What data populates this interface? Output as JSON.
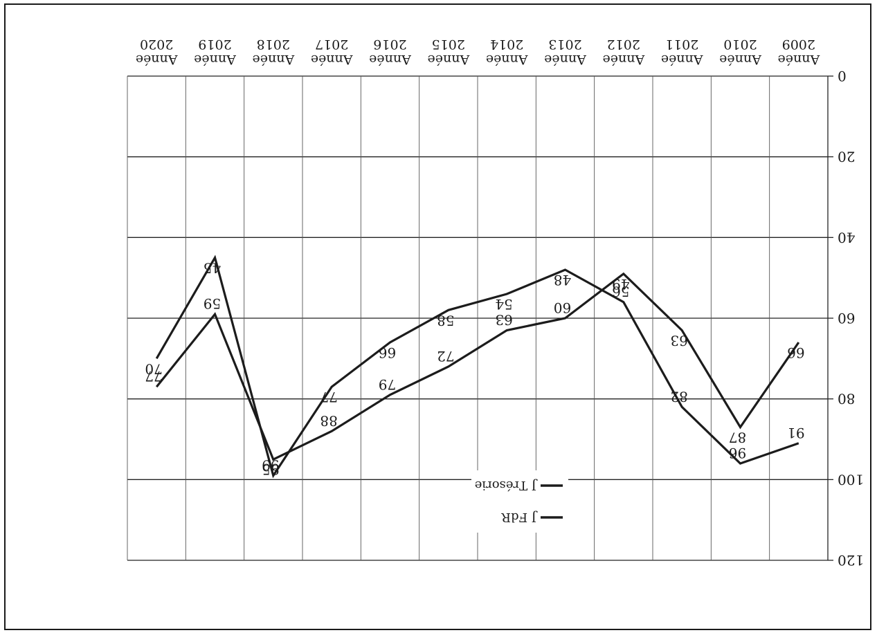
{
  "chart_data": {
    "type": "line",
    "orientation": "rotated-180",
    "x_categories": [
      "Année 2009",
      "Année 2010",
      "Année 2011",
      "Année 2012",
      "Année 2013",
      "Année 2014",
      "Année 2015",
      "Année 2016",
      "Année 2017",
      "Année 2018",
      "Année 2019",
      "Année 2020"
    ],
    "x_category_lines": [
      [
        "Année",
        "2009"
      ],
      [
        "Année",
        "2010"
      ],
      [
        "Année",
        "2011"
      ],
      [
        "Année",
        "2012"
      ],
      [
        "Année",
        "2013"
      ],
      [
        "Année",
        "2014"
      ],
      [
        "Année",
        "2015"
      ],
      [
        "Année",
        "2016"
      ],
      [
        "Année",
        "2017"
      ],
      [
        "Année",
        "2018"
      ],
      [
        "Année",
        "2019"
      ],
      [
        "Année",
        "2020"
      ]
    ],
    "y_ticks": [
      0,
      20,
      40,
      60,
      80,
      100,
      120
    ],
    "ylim": [
      0,
      120
    ],
    "grid": true,
    "legend_position": "inside",
    "series": [
      {
        "name": "J FdR",
        "values": [
          91,
          96,
          82,
          56,
          48,
          54,
          58,
          66,
          77,
          99,
          45,
          70
        ],
        "color": "#1c1c1c"
      },
      {
        "name": "J Trésorie",
        "values": [
          66,
          87,
          63,
          49,
          60,
          63,
          72,
          79,
          88,
          95,
          59,
          77
        ],
        "color": "#1c1c1c"
      }
    ],
    "data_labels": [
      {
        "text": "91",
        "category": 0,
        "value": 91
      },
      {
        "text": "66",
        "category": 0,
        "value": 66
      },
      {
        "text": "96",
        "category": 1,
        "value": 96
      },
      {
        "text": "87",
        "category": 1,
        "value": 87
      },
      {
        "text": "82",
        "category": 2,
        "value": 82
      },
      {
        "text": "63",
        "category": 2,
        "value": 63
      },
      {
        "text": "56",
        "category": 3,
        "value": 56
      },
      {
        "text": "49",
        "category": 3,
        "value": 49
      },
      {
        "text": "48",
        "category": 4,
        "value": 48
      },
      {
        "text": "60",
        "category": 4,
        "value": 60
      },
      {
        "text": "54",
        "category": 5,
        "value": 54
      },
      {
        "text": "63",
        "category": 5,
        "value": 63
      },
      {
        "text": "58",
        "category": 6,
        "value": 58
      },
      {
        "text": "72",
        "category": 6,
        "value": 72
      },
      {
        "text": "66",
        "category": 7,
        "value": 66
      },
      {
        "text": "79",
        "category": 7,
        "value": 79
      },
      {
        "text": "77",
        "category": 8,
        "value": 77
      },
      {
        "text": "88",
        "category": 8,
        "value": 88
      },
      {
        "text": "99",
        "category": 9,
        "value": 99
      },
      {
        "text": "95",
        "category": 9,
        "value": 95
      },
      {
        "text": "45",
        "category": 10,
        "value": 45
      },
      {
        "text": "59",
        "category": 10,
        "value": 59
      },
      {
        "text": "70",
        "category": 11,
        "value": 70
      },
      {
        "text": "77",
        "category": 11,
        "value": 77
      }
    ]
  }
}
